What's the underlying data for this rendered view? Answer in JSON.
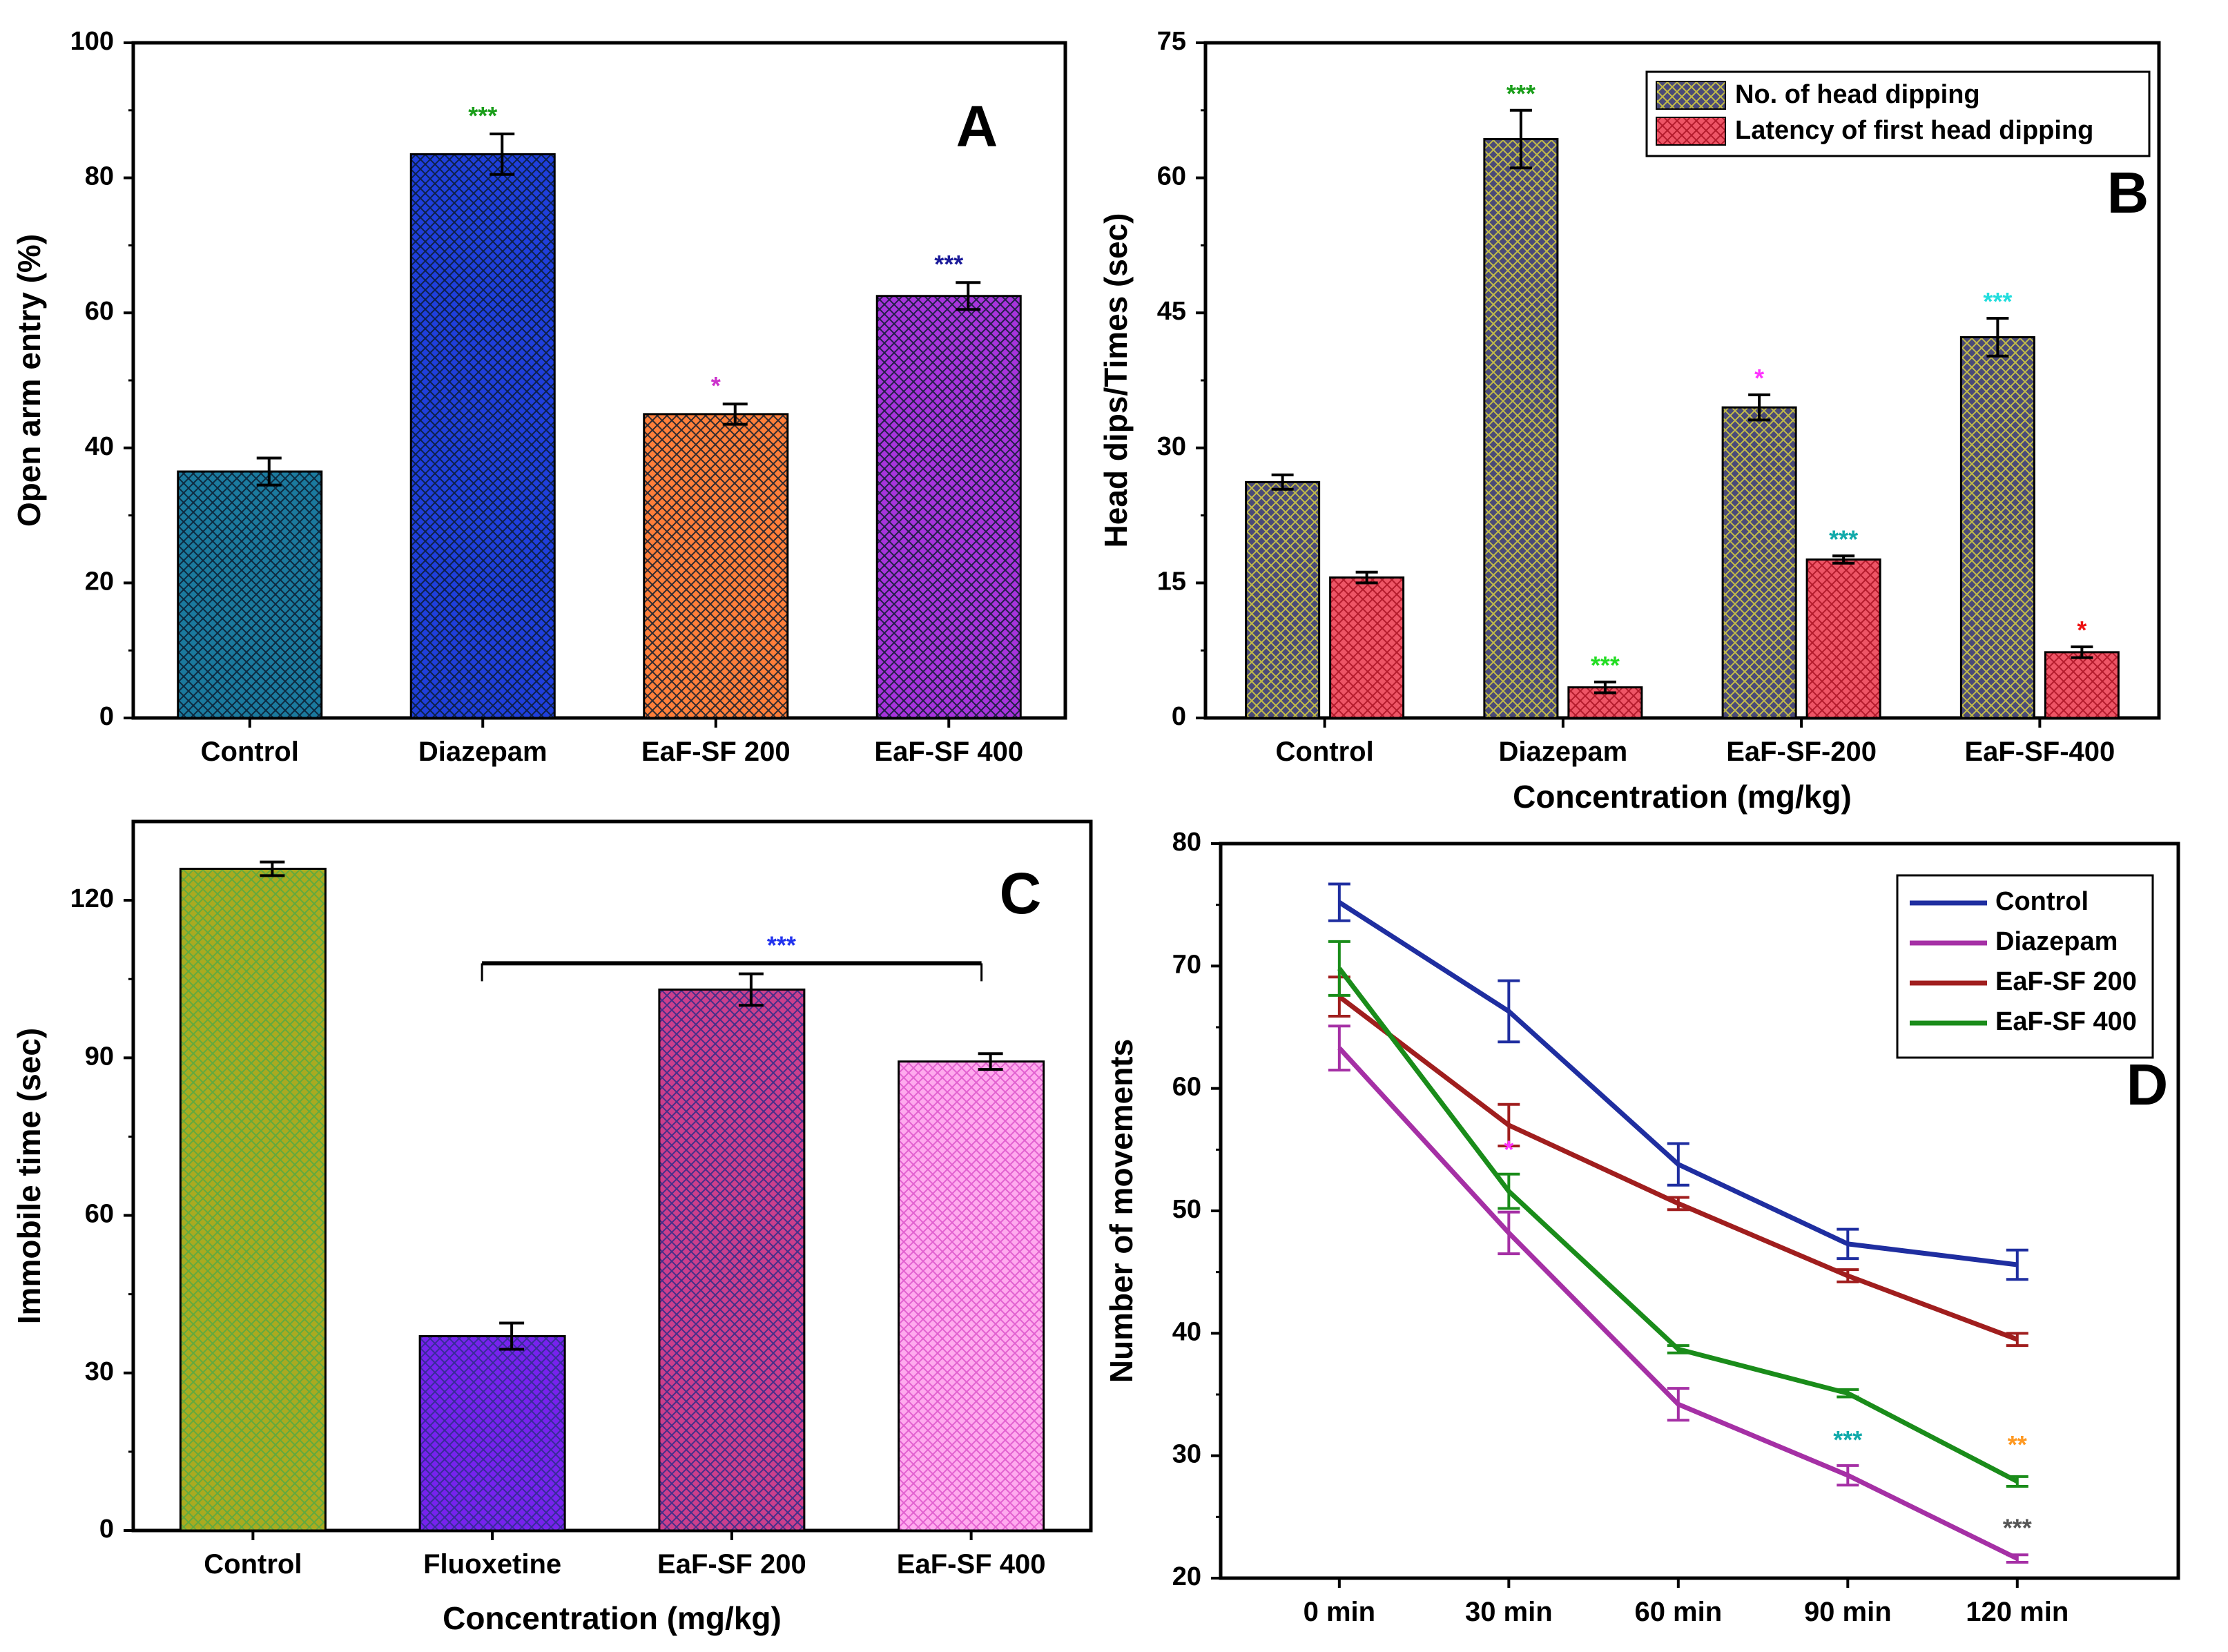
{
  "chart_data": [
    {
      "id": "A",
      "type": "bar",
      "panel_label": "A",
      "title": "",
      "xlabel": "",
      "ylabel": "Open arm entry (%)",
      "categories": [
        "Control",
        "Diazepam",
        "EaF-SF 200",
        "EaF-SF 400"
      ],
      "values": [
        36.5,
        83.5,
        45,
        62.5
      ],
      "errors": [
        2,
        3,
        1.5,
        2
      ],
      "significance": [
        "",
        "***",
        "*",
        "***"
      ],
      "significance_colors": [
        "#000000",
        "#1a9e1a",
        "#cc33cc",
        "#1a1a99"
      ],
      "colors": [
        "#1b7a9e",
        "#1f3fdc",
        "#ff7f3a",
        "#a834dc"
      ],
      "ylim": [
        0,
        100
      ],
      "yticks": [
        0,
        20,
        40,
        60,
        80,
        100
      ]
    },
    {
      "id": "B",
      "type": "bar",
      "panel_label": "B",
      "title": "",
      "xlabel": "Concentration (mg/kg)",
      "ylabel": "Head dips/Times (sec)",
      "categories": [
        "Control",
        "Diazepam",
        "EaF-SF-200",
        "EaF-SF-400"
      ],
      "series": [
        {
          "name": "No. of head dipping",
          "color": "#4a4a78",
          "values": [
            26.2,
            64.3,
            34.5,
            42.3
          ],
          "errors": [
            0.8,
            3.2,
            1.4,
            2.1
          ],
          "significance": [
            "",
            "***",
            "*",
            "***"
          ],
          "significance_colors": [
            "#000000",
            "#1a9e1a",
            "#ff33ff",
            "#22dddd"
          ]
        },
        {
          "name": "Latency of first head dipping",
          "color": "#ee5566",
          "values": [
            15.6,
            3.4,
            17.6,
            7.3
          ],
          "errors": [
            0.6,
            0.6,
            0.4,
            0.6
          ],
          "significance": [
            "",
            "***",
            "***",
            "*"
          ],
          "significance_colors": [
            "#000000",
            "#22dd22",
            "#11aaaa",
            "#ee1111"
          ]
        }
      ],
      "ylim": [
        0,
        75
      ],
      "yticks": [
        0,
        15,
        30,
        45,
        60,
        75
      ],
      "legend": "top-right"
    },
    {
      "id": "C",
      "type": "bar",
      "panel_label": "C",
      "title": "",
      "xlabel": "Concentration (mg/kg)",
      "ylabel": "Immobile time (sec)",
      "categories": [
        "Control",
        "Fluoxetine",
        "EaF-SF 200",
        "EaF-SF 400"
      ],
      "values": [
        126,
        37,
        103,
        89.3
      ],
      "errors": [
        1.3,
        2.5,
        3,
        1.5
      ],
      "colors": [
        "#aaaa20",
        "#7722ee",
        "#cc3f8c",
        "#ffaaee"
      ],
      "bracket_label": "***",
      "bracket_color": "#2233ee",
      "ylim": [
        0,
        135
      ],
      "yticks": [
        0,
        30,
        60,
        90,
        120
      ]
    },
    {
      "id": "D",
      "type": "line",
      "panel_label": "D",
      "title": "",
      "xlabel": "",
      "ylabel": "Number of movements",
      "categories": [
        "0 min",
        "30 min",
        "60 min",
        "90 min",
        "120 min"
      ],
      "series": [
        {
          "name": "Control",
          "color": "#1f2ea0",
          "values": [
            75.2,
            66.3,
            53.8,
            47.3,
            45.6
          ],
          "errors": [
            1.5,
            2.5,
            1.7,
            1.2,
            1.2
          ]
        },
        {
          "name": "Diazepam",
          "color": "#a530a5",
          "values": [
            63.3,
            48.2,
            34.2,
            28.4,
            21.6
          ],
          "errors": [
            1.8,
            1.7,
            1.3,
            0.8,
            0.3
          ]
        },
        {
          "name": "EaF-SF 200",
          "color": "#a01e1e",
          "values": [
            67.5,
            57,
            50.6,
            44.7,
            39.5
          ],
          "errors": [
            1.6,
            1.7,
            0.5,
            0.5,
            0.5
          ]
        },
        {
          "name": "EaF-SF 400",
          "color": "#1a8c1a",
          "values": [
            69.8,
            51.6,
            38.7,
            35.1,
            27.9
          ],
          "errors": [
            2.2,
            1.4,
            0.3,
            0.3,
            0.4
          ]
        }
      ],
      "annotations": [
        {
          "text": "*",
          "x": "30 min",
          "y": 54.3,
          "color": "#ff33ff"
        },
        {
          "text": "***",
          "x": "90 min",
          "y": 30.6,
          "color": "#11aaaa"
        },
        {
          "text": "**",
          "x": "120 min",
          "y": 30.2,
          "color": "#ff9922"
        },
        {
          "text": "***",
          "x": "120 min",
          "y": 23.4,
          "color": "#555555"
        }
      ],
      "ylim": [
        20,
        80
      ],
      "yticks": [
        20,
        30,
        40,
        50,
        60,
        70,
        80
      ],
      "legend": "top-right"
    }
  ]
}
